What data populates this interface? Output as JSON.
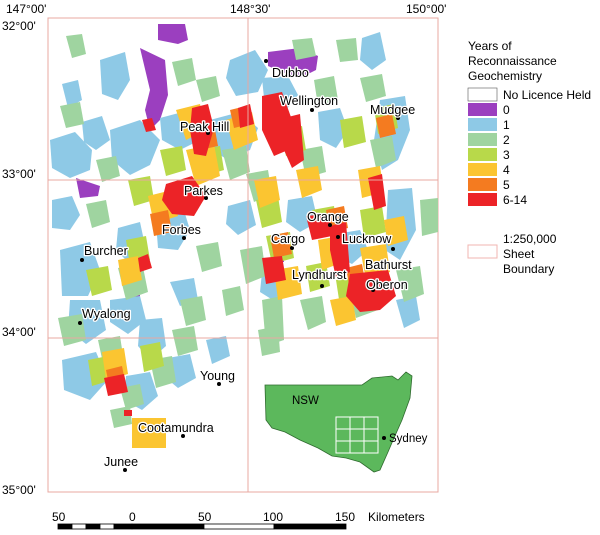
{
  "lon_labels": [
    "147°00'",
    "148°30'",
    "150°00'"
  ],
  "lat_labels": [
    "32°00'",
    "33°00'",
    "34°00'",
    "35°00'"
  ],
  "legend": {
    "title_lines": [
      "Years of",
      "Reconnaissance",
      "Geochemistry"
    ],
    "items": [
      {
        "label": "No Licence Held",
        "color": "#ffffff"
      },
      {
        "label": "0",
        "color": "#9b3fbf"
      },
      {
        "label": "1",
        "color": "#8ec9e6"
      },
      {
        "label": "2",
        "color": "#9fd4a0"
      },
      {
        "label": "3",
        "color": "#b8d94a"
      },
      {
        "label": "4",
        "color": "#fbc531"
      },
      {
        "label": "5",
        "color": "#f47b20"
      },
      {
        "label": "6-14",
        "color": "#ec2327"
      }
    ],
    "sheet_boundary_lines": [
      "1:250,000",
      "Sheet",
      "Boundary"
    ],
    "sheet_boundary_color": "#f2b6b0"
  },
  "towns": [
    {
      "name": "Dubbo"
    },
    {
      "name": "Wellington"
    },
    {
      "name": "Mudgee"
    },
    {
      "name": "Peak Hill"
    },
    {
      "name": "Parkes"
    },
    {
      "name": "Orange"
    },
    {
      "name": "Forbes"
    },
    {
      "name": "Cargo"
    },
    {
      "name": "Lucknow"
    },
    {
      "name": "Bathurst"
    },
    {
      "name": "Burcher"
    },
    {
      "name": "Lyndhurst"
    },
    {
      "name": "Oberon"
    },
    {
      "name": "Wyalong"
    },
    {
      "name": "Young"
    },
    {
      "name": "Cootamundra"
    },
    {
      "name": "Junee"
    }
  ],
  "inset": {
    "state_label": "NSW",
    "city_label": "Sydney",
    "land_color": "#5cb85c"
  },
  "scale_bar": {
    "ticks": [
      "50",
      "0",
      "50",
      "100",
      "150"
    ],
    "unit": "Kilometers"
  }
}
